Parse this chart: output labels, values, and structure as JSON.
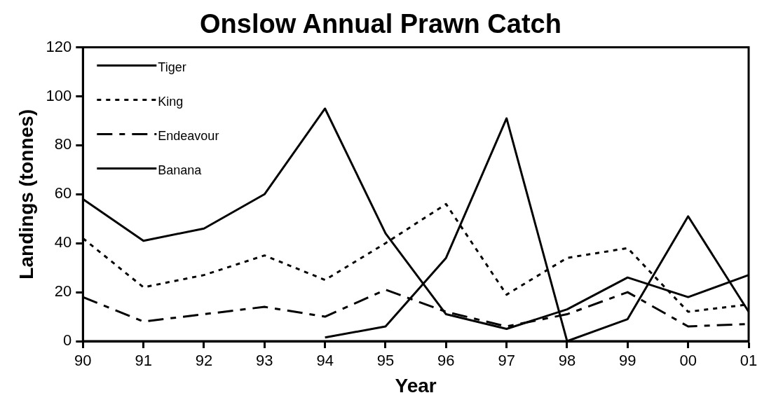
{
  "chart_data": {
    "type": "line",
    "title": "Onslow Annual Prawn Catch",
    "xlabel": "Year",
    "ylabel": "Landings (tonnes)",
    "categories": [
      "90",
      "91",
      "92",
      "93",
      "94",
      "95",
      "96",
      "97",
      "98",
      "99",
      "00",
      "01"
    ],
    "ylim": [
      0,
      120
    ],
    "yticks": [
      0,
      20,
      40,
      60,
      80,
      100,
      120
    ],
    "grid": false,
    "legend": "top left",
    "marker": "none",
    "series": [
      {
        "name": "Tiger",
        "color": "#000000",
        "line_style": "solid",
        "values": [
          58,
          41,
          46,
          60,
          95,
          44,
          11,
          5,
          13,
          26,
          18,
          27
        ]
      },
      {
        "name": "King",
        "color": "#000000",
        "line_style": "dotted",
        "values": [
          42,
          22,
          27,
          35,
          25,
          40,
          56,
          19,
          34,
          38,
          12,
          15
        ]
      },
      {
        "name": "Endeavour",
        "color": "#000000",
        "line_style": "dashed",
        "values": [
          18,
          8,
          11,
          14,
          10,
          21,
          12,
          6,
          11,
          20,
          6,
          7
        ]
      },
      {
        "name": "Banana",
        "color": "#000000",
        "line_style": "solid",
        "values": [
          null,
          null,
          null,
          null,
          1.5,
          6,
          34,
          91,
          0,
          9,
          51,
          12
        ]
      }
    ]
  }
}
